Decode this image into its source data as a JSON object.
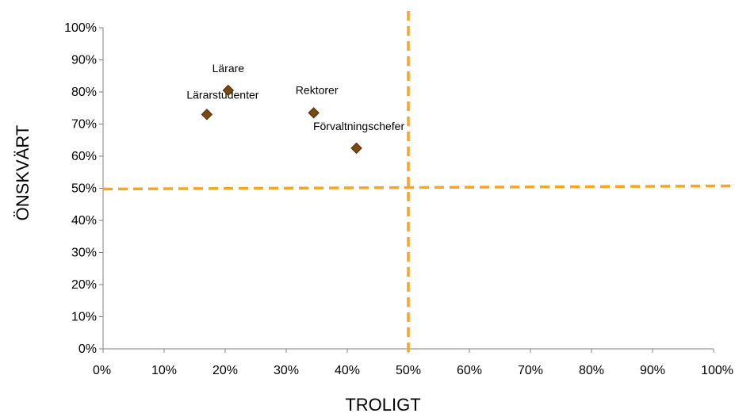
{
  "chart_data": {
    "type": "scatter",
    "xlabel": "TROLIGT",
    "ylabel": "ÖNSKVÄRT",
    "xlim": [
      0,
      100
    ],
    "ylim": [
      0,
      100
    ],
    "x_tick_labels": [
      "0%",
      "10%",
      "20%",
      "30%",
      "40%",
      "50%",
      "60%",
      "70%",
      "80%",
      "90%",
      "100%"
    ],
    "y_tick_labels": [
      "0%",
      "10%",
      "20%",
      "30%",
      "40%",
      "50%",
      "60%",
      "70%",
      "80%",
      "90%",
      "100%"
    ],
    "grid": false,
    "marker": "diamond",
    "marker_color": "#7B4A12",
    "reference_line_color": "#F5A623",
    "reference_lines": {
      "x": 50,
      "y": 50
    },
    "points": [
      {
        "label": "Lärarstudenter",
        "x": 17,
        "y": 73
      },
      {
        "label": "Lärare",
        "x": 20.5,
        "y": 80.5
      },
      {
        "label": "Rektorer",
        "x": 34.5,
        "y": 73.5
      },
      {
        "label": "Förvaltningschefer",
        "x": 41.5,
        "y": 62.5
      }
    ]
  }
}
